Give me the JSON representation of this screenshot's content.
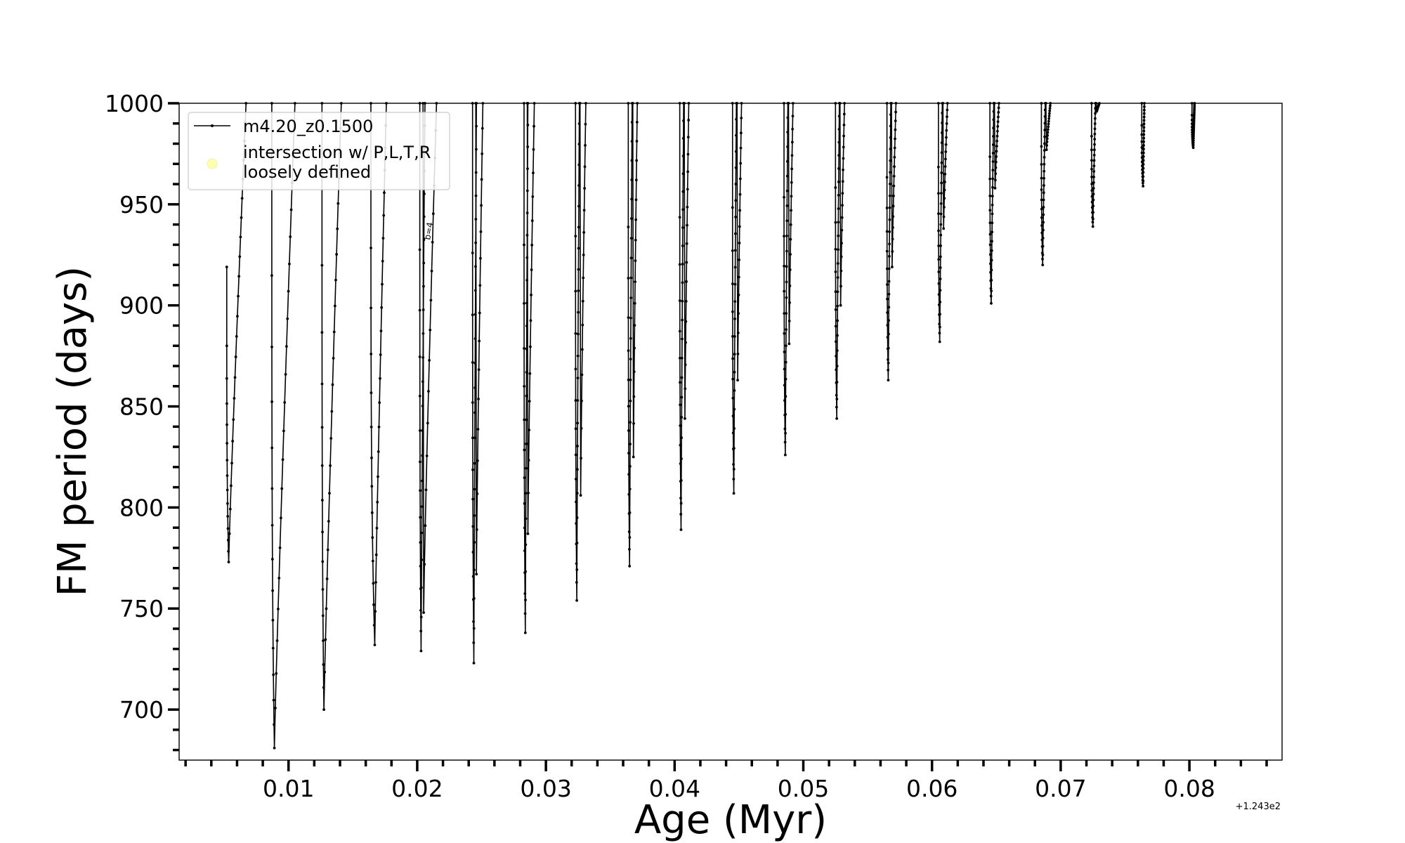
{
  "chart_data": {
    "type": "line",
    "xlabel": "Age (Myr)",
    "ylabel": "FM period (days)",
    "x_offset_label": "+1.243e2",
    "xlim": [
      0.0015,
      0.0872
    ],
    "ylim": [
      675,
      1000
    ],
    "x_ticks": [
      0.01,
      0.02,
      0.03,
      0.04,
      0.05,
      0.06,
      0.07,
      0.08
    ],
    "x_tick_labels": [
      "0.01",
      "0.02",
      "0.03",
      "0.04",
      "0.05",
      "0.06",
      "0.07",
      "0.08"
    ],
    "y_ticks": [
      700,
      750,
      800,
      850,
      900,
      950,
      1000
    ],
    "y_tick_labels": [
      "700",
      "750",
      "800",
      "850",
      "900",
      "950",
      "1000"
    ],
    "grid": false,
    "legend_placement": "top-left",
    "legend": [
      {
        "label": "m4.20_z0.1500",
        "marker": "line-dot",
        "color": "#000000"
      },
      {
        "label_line1": "intersection w/ P,L,T,R",
        "label_line2": "loosely defined",
        "marker": "circle",
        "color": "#ffffb0"
      }
    ],
    "annotation": "b=4",
    "series": [
      {
        "name": "m4.20_z0.1500",
        "color": "#000000",
        "cycles": [
          {
            "start": 0.0052,
            "top": 919,
            "min_x": 0.00535,
            "min": 773,
            "end": 0.0067
          },
          {
            "start": 0.0087,
            "top": 1000,
            "min_x": 0.0089,
            "min": 681,
            "end": 0.0105
          },
          {
            "start": 0.0126,
            "top": 1000,
            "min_x": 0.01275,
            "min": 700,
            "end": 0.0141
          },
          {
            "start": 0.0164,
            "top": 1000,
            "min_x": 0.0167,
            "min": 732,
            "end": 0.0176
          },
          {
            "start": 0.0202,
            "top": 1000,
            "min_x": 0.0203,
            "min": 729,
            "end": 0.0206,
            "tail_start": 0.0205,
            "tail_min": 748,
            "tail_end": 0.0215
          },
          {
            "start": 0.0243,
            "top": 1000,
            "min_x": 0.0244,
            "min": 723,
            "end": 0.0246,
            "tail_start": 0.0246,
            "tail_min": 767,
            "tail_end": 0.0251
          },
          {
            "start": 0.0283,
            "top": 1000,
            "min_x": 0.0284,
            "min": 738,
            "end": 0.0286,
            "tail_start": 0.0286,
            "tail_min": 787,
            "tail_end": 0.0291
          },
          {
            "start": 0.0323,
            "top": 1000,
            "min_x": 0.0324,
            "min": 754,
            "end": 0.0326,
            "tail_start": 0.0327,
            "tail_min": 806,
            "tail_end": 0.0331
          },
          {
            "start": 0.0364,
            "top": 1000,
            "min_x": 0.0365,
            "min": 771,
            "end": 0.0367,
            "tail_start": 0.0368,
            "tail_min": 825,
            "tail_end": 0.0371
          },
          {
            "start": 0.0404,
            "top": 1000,
            "min_x": 0.0405,
            "min": 789,
            "end": 0.0407,
            "tail_start": 0.0408,
            "tail_min": 844,
            "tail_end": 0.0411
          },
          {
            "start": 0.0445,
            "top": 1000,
            "min_x": 0.0446,
            "min": 807,
            "end": 0.0448,
            "tail_start": 0.0449,
            "tail_min": 863,
            "tail_end": 0.0452
          },
          {
            "start": 0.0485,
            "top": 1000,
            "min_x": 0.0486,
            "min": 826,
            "end": 0.0488,
            "tail_start": 0.0489,
            "tail_min": 881,
            "tail_end": 0.0492
          },
          {
            "start": 0.0525,
            "top": 1000,
            "min_x": 0.0526,
            "min": 844,
            "end": 0.0528,
            "tail_start": 0.0529,
            "tail_min": 900,
            "tail_end": 0.0532
          },
          {
            "start": 0.0565,
            "top": 1000,
            "min_x": 0.0566,
            "min": 863,
            "end": 0.0568,
            "tail_start": 0.0569,
            "tail_min": 919,
            "tail_end": 0.0572
          },
          {
            "start": 0.0605,
            "top": 1000,
            "min_x": 0.0606,
            "min": 882,
            "end": 0.0608,
            "tail_start": 0.0609,
            "tail_min": 938,
            "tail_end": 0.0612
          },
          {
            "start": 0.0645,
            "top": 1000,
            "min_x": 0.0646,
            "min": 901,
            "end": 0.0648,
            "tail_start": 0.0649,
            "tail_min": 958,
            "tail_end": 0.0652
          },
          {
            "start": 0.0685,
            "top": 1000,
            "min_x": 0.0686,
            "min": 920,
            "end": 0.0688,
            "tail_start": 0.0689,
            "tail_min": 977,
            "tail_end": 0.0692
          },
          {
            "start": 0.0724,
            "top": 1000,
            "min_x": 0.0725,
            "min": 939,
            "end": 0.0727,
            "tail_start": 0.0728,
            "tail_min": 996,
            "tail_end": 0.073
          },
          {
            "start": 0.0763,
            "top": 1000,
            "min_x": 0.0764,
            "min": 959,
            "end": 0.0765
          },
          {
            "start": 0.0802,
            "top": 1000,
            "min_x": 0.0803,
            "min": 978,
            "end": 0.0804
          }
        ]
      }
    ]
  }
}
